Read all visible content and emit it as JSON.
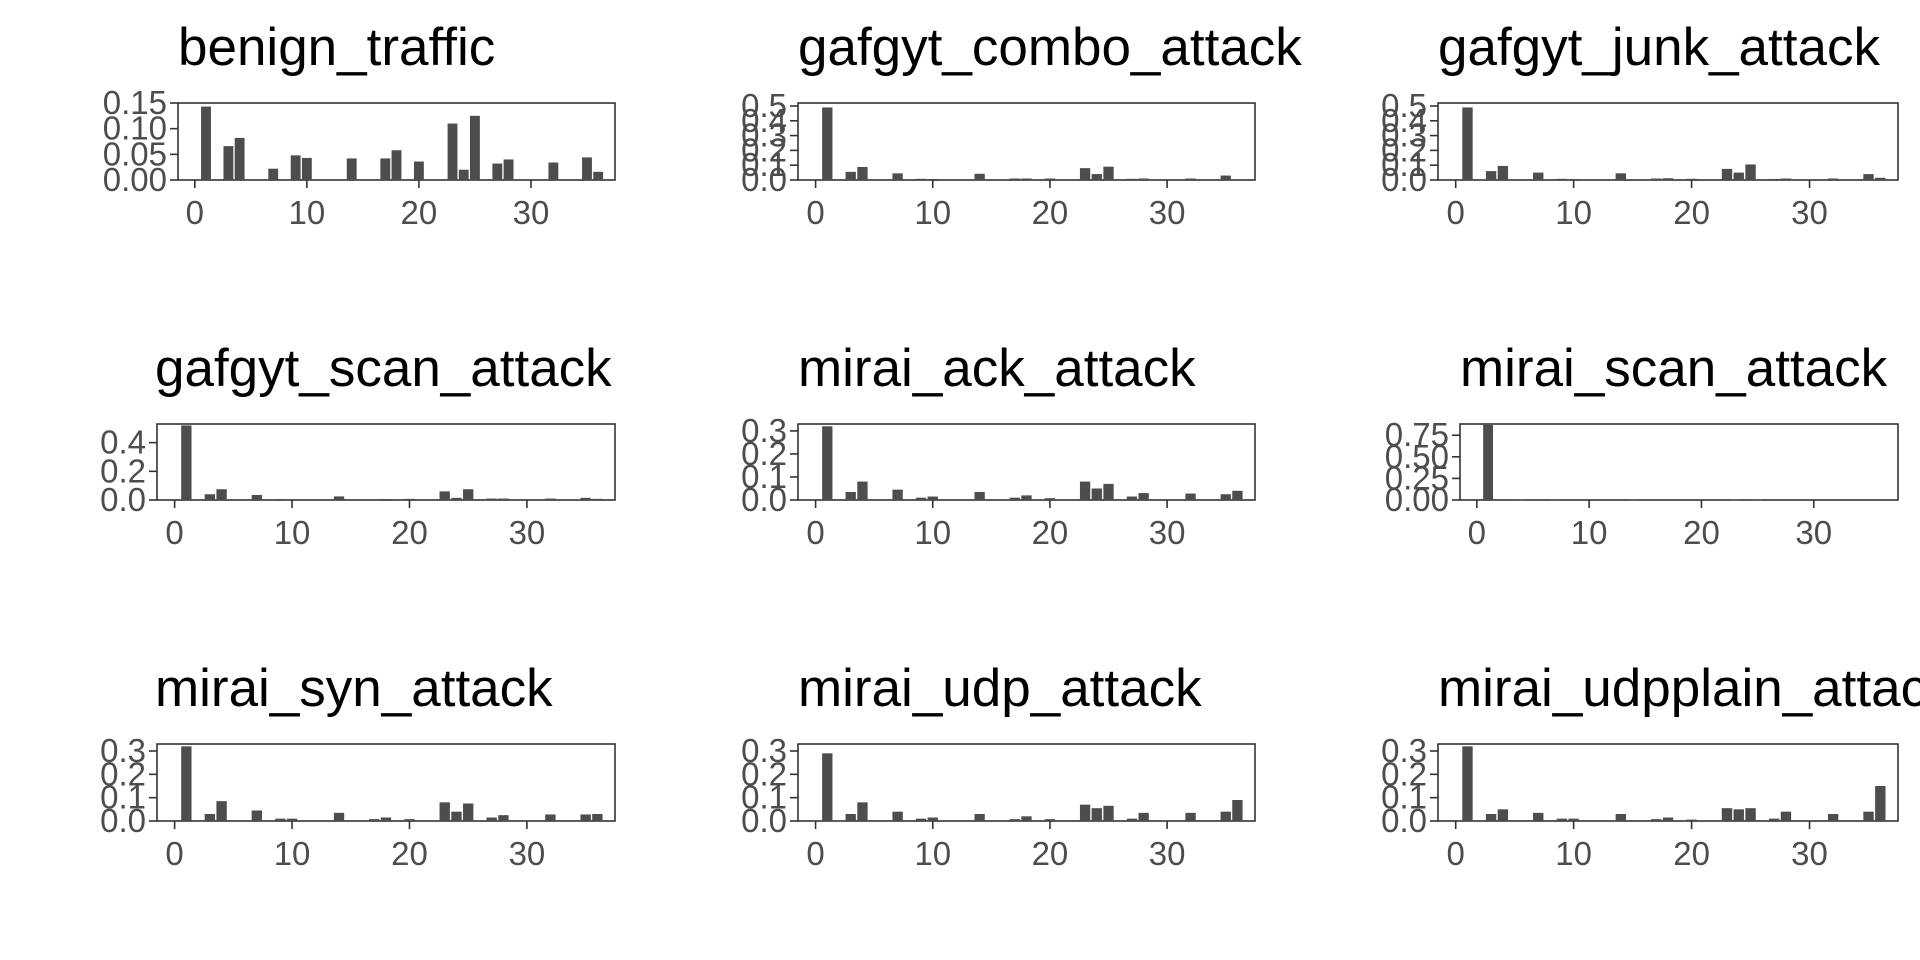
{
  "chart_data": [
    {
      "type": "bar",
      "title": "benign_traffic",
      "x_ticks": [
        0,
        10,
        20,
        30
      ],
      "y_ticks": [
        "0.00",
        "0.05",
        "0.10",
        "0.15"
      ],
      "y_tick_values": [
        0,
        0.05,
        0.1,
        0.15
      ],
      "xlim": [
        -1.5,
        37.5
      ],
      "ylim": [
        0,
        0.15
      ],
      "x": [
        1,
        3,
        4,
        7,
        9,
        10,
        14,
        17,
        18,
        20,
        23,
        24,
        25,
        27,
        28,
        32,
        35,
        36
      ],
      "values": [
        0.143,
        0.066,
        0.082,
        0.022,
        0.048,
        0.043,
        0.042,
        0.042,
        0.058,
        0.036,
        0.11,
        0.02,
        0.125,
        0.032,
        0.04,
        0.034,
        0.044,
        0.016
      ]
    },
    {
      "type": "bar",
      "title": "gafgyt_combo_attack",
      "x_ticks": [
        0,
        10,
        20,
        30
      ],
      "y_ticks": [
        "0.0",
        "0.1",
        "0.2",
        "0.3",
        "0.4",
        "0.5"
      ],
      "y_tick_values": [
        0,
        0.1,
        0.2,
        0.3,
        0.4,
        0.5
      ],
      "xlim": [
        -1.5,
        37.5
      ],
      "ylim": [
        0,
        0.52
      ],
      "x": [
        1,
        3,
        4,
        7,
        9,
        10,
        14,
        17,
        18,
        20,
        23,
        24,
        25,
        27,
        28,
        32,
        35,
        36
      ],
      "values": [
        0.49,
        0.055,
        0.088,
        0.045,
        0.008,
        0.007,
        0.042,
        0.01,
        0.01,
        0.01,
        0.08,
        0.04,
        0.09,
        0.008,
        0.01,
        0.01,
        0.03,
        0.005
      ]
    },
    {
      "type": "bar",
      "title": "gafgyt_junk_attack",
      "x_ticks": [
        0,
        10,
        20,
        30
      ],
      "y_ticks": [
        "0.0",
        "0.1",
        "0.2",
        "0.3",
        "0.4",
        "0.5"
      ],
      "y_tick_values": [
        0,
        0.1,
        0.2,
        0.3,
        0.4,
        0.5
      ],
      "xlim": [
        -1.5,
        37.5
      ],
      "ylim": [
        0,
        0.52
      ],
      "x": [
        1,
        3,
        4,
        7,
        9,
        10,
        14,
        17,
        18,
        20,
        23,
        24,
        25,
        27,
        28,
        32,
        35,
        36
      ],
      "values": [
        0.49,
        0.06,
        0.095,
        0.05,
        0.008,
        0.006,
        0.045,
        0.01,
        0.012,
        0.008,
        0.075,
        0.05,
        0.105,
        0.007,
        0.01,
        0.01,
        0.04,
        0.015
      ]
    },
    {
      "type": "bar",
      "title": "gafgyt_scan_attack",
      "x_ticks": [
        0,
        10,
        20,
        30
      ],
      "y_ticks": [
        "0.0",
        "0.2",
        "0.4"
      ],
      "y_tick_values": [
        0,
        0.2,
        0.4
      ],
      "xlim": [
        -1.5,
        37.5
      ],
      "ylim": [
        0,
        0.53
      ],
      "x": [
        1,
        3,
        4,
        7,
        9,
        10,
        14,
        17,
        18,
        20,
        23,
        24,
        25,
        27,
        28,
        32,
        35,
        36
      ],
      "values": [
        0.52,
        0.04,
        0.075,
        0.035,
        0.006,
        0.005,
        0.025,
        0.005,
        0.007,
        0.008,
        0.06,
        0.015,
        0.075,
        0.01,
        0.01,
        0.01,
        0.015,
        0.008
      ]
    },
    {
      "type": "bar",
      "title": "mirai_ack_attack",
      "x_ticks": [
        0,
        10,
        20,
        30
      ],
      "y_ticks": [
        "0.0",
        "0.1",
        "0.2",
        "0.3"
      ],
      "y_tick_values": [
        0,
        0.1,
        0.2,
        0.3
      ],
      "xlim": [
        -1.5,
        37.5
      ],
      "ylim": [
        0,
        0.33
      ],
      "x": [
        1,
        3,
        4,
        7,
        9,
        10,
        14,
        17,
        18,
        20,
        23,
        24,
        25,
        27,
        28,
        32,
        35,
        36
      ],
      "values": [
        0.32,
        0.035,
        0.08,
        0.045,
        0.01,
        0.015,
        0.035,
        0.01,
        0.02,
        0.008,
        0.08,
        0.05,
        0.07,
        0.015,
        0.03,
        0.028,
        0.025,
        0.04
      ]
    },
    {
      "type": "bar",
      "title": "mirai_scan_attack",
      "x_ticks": [
        0,
        10,
        20,
        30
      ],
      "y_ticks": [
        "0.00",
        "0.25",
        "0.50",
        "0.75"
      ],
      "y_tick_values": [
        0,
        0.25,
        0.5,
        0.75
      ],
      "xlim": [
        -1.5,
        37.5
      ],
      "ylim": [
        0,
        0.88
      ],
      "x": [
        1,
        3,
        4,
        7,
        14,
        23,
        25
      ],
      "values": [
        0.87,
        0.008,
        0.006,
        0.004,
        0.004,
        0.006,
        0.004
      ]
    },
    {
      "type": "bar",
      "title": "mirai_syn_attack",
      "x_ticks": [
        0,
        10,
        20,
        30
      ],
      "y_ticks": [
        "0.0",
        "0.1",
        "0.2",
        "0.3"
      ],
      "y_tick_values": [
        0,
        0.1,
        0.2,
        0.3
      ],
      "xlim": [
        -1.5,
        37.5
      ],
      "ylim": [
        0,
        0.33
      ],
      "x": [
        1,
        3,
        4,
        7,
        9,
        10,
        14,
        17,
        18,
        20,
        23,
        24,
        25,
        27,
        28,
        32,
        35,
        36
      ],
      "values": [
        0.32,
        0.03,
        0.085,
        0.045,
        0.01,
        0.01,
        0.035,
        0.008,
        0.015,
        0.008,
        0.08,
        0.04,
        0.075,
        0.015,
        0.025,
        0.028,
        0.028,
        0.03
      ]
    },
    {
      "type": "bar",
      "title": "mirai_udp_attack",
      "x_ticks": [
        0,
        10,
        20,
        30
      ],
      "y_ticks": [
        "0.0",
        "0.1",
        "0.2",
        "0.3"
      ],
      "y_tick_values": [
        0,
        0.1,
        0.2,
        0.3
      ],
      "xlim": [
        -1.5,
        37.5
      ],
      "ylim": [
        0,
        0.33
      ],
      "x": [
        1,
        3,
        4,
        7,
        9,
        10,
        14,
        17,
        18,
        20,
        23,
        24,
        25,
        27,
        28,
        32,
        35,
        36
      ],
      "values": [
        0.29,
        0.03,
        0.08,
        0.04,
        0.01,
        0.015,
        0.03,
        0.008,
        0.02,
        0.008,
        0.07,
        0.055,
        0.065,
        0.01,
        0.035,
        0.035,
        0.04,
        0.09
      ]
    },
    {
      "type": "bar",
      "title": "mirai_udpplain_attack",
      "x_ticks": [
        0,
        10,
        20,
        30
      ],
      "y_ticks": [
        "0.0",
        "0.1",
        "0.2",
        "0.3"
      ],
      "y_tick_values": [
        0,
        0.1,
        0.2,
        0.3
      ],
      "xlim": [
        -1.5,
        37.5
      ],
      "ylim": [
        0,
        0.33
      ],
      "x": [
        1,
        3,
        4,
        7,
        9,
        10,
        14,
        17,
        18,
        20,
        23,
        24,
        25,
        27,
        28,
        32,
        35,
        36
      ],
      "values": [
        0.32,
        0.03,
        0.05,
        0.035,
        0.01,
        0.01,
        0.03,
        0.008,
        0.015,
        0.006,
        0.055,
        0.05,
        0.055,
        0.01,
        0.04,
        0.03,
        0.04,
        0.15
      ]
    }
  ],
  "colors": {
    "bar": "#4d4d4d",
    "axis": "#333333",
    "tick_text": "#4d4d4d",
    "title": "#000000"
  }
}
